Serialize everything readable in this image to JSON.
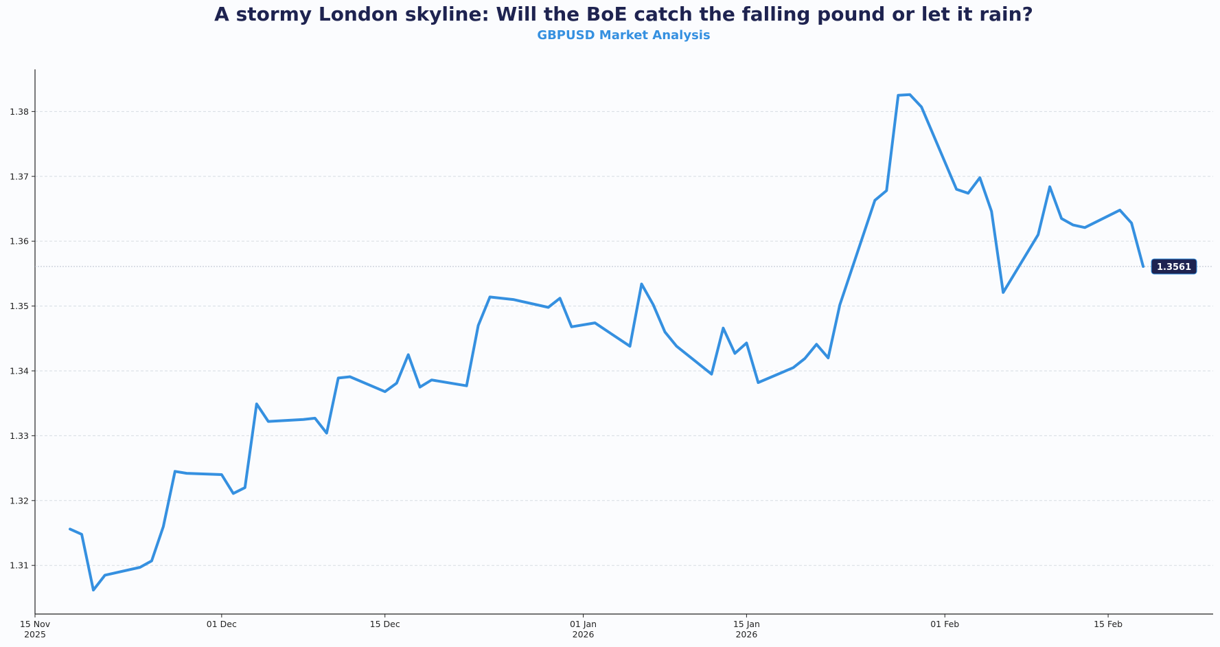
{
  "chart_data": {
    "type": "line",
    "title": "A stormy London skyline: Will the BoE catch the falling pound or let it rain?",
    "subtitle": "GBPUSD Market Analysis",
    "xlabel": "",
    "ylabel": "",
    "xlim": [
      "2025-11-15",
      "2026-02-24"
    ],
    "ylim": [
      1.3025,
      1.3865
    ],
    "grid": "horizontal-dashed",
    "x_ticks": [
      {
        "date": "2025-11-15",
        "label": "15 Nov",
        "year": "2025"
      },
      {
        "date": "2025-12-01",
        "label": "01 Dec",
        "year": ""
      },
      {
        "date": "2025-12-15",
        "label": "15 Dec",
        "year": ""
      },
      {
        "date": "2026-01-01",
        "label": "01 Jan",
        "year": "2026"
      },
      {
        "date": "2026-01-15",
        "label": "15 Jan",
        "year": "2026"
      },
      {
        "date": "2026-02-01",
        "label": "01 Feb",
        "year": ""
      },
      {
        "date": "2026-02-15",
        "label": "15 Feb",
        "year": ""
      }
    ],
    "y_ticks": [
      "1.31",
      "1.32",
      "1.33",
      "1.34",
      "1.35",
      "1.36",
      "1.37",
      "1.38"
    ],
    "last_value_label": "1.3561",
    "line_color": "#3590e0",
    "label_color": "#1e2350",
    "series": [
      {
        "x": [
          "2025-11-18",
          "2025-11-19",
          "2025-11-20",
          "2025-11-21",
          "2025-11-24",
          "2025-11-25",
          "2025-11-26",
          "2025-11-27",
          "2025-11-28",
          "2025-12-01",
          "2025-12-02",
          "2025-12-03",
          "2025-12-04",
          "2025-12-05",
          "2025-12-08",
          "2025-12-09",
          "2025-12-10",
          "2025-12-11",
          "2025-12-12",
          "2025-12-15",
          "2025-12-16",
          "2025-12-17",
          "2025-12-18",
          "2025-12-19",
          "2025-12-22",
          "2025-12-23",
          "2025-12-24",
          "2025-12-26",
          "2025-12-29",
          "2025-12-30",
          "2025-12-31",
          "2026-01-02",
          "2026-01-05",
          "2026-01-06",
          "2026-01-07",
          "2026-01-08",
          "2026-01-09",
          "2026-01-12",
          "2026-01-13",
          "2026-01-14",
          "2026-01-15",
          "2026-01-16",
          "2026-01-19",
          "2026-01-20",
          "2026-01-21",
          "2026-01-22",
          "2026-01-23",
          "2026-01-26",
          "2026-01-27",
          "2026-01-28",
          "2026-01-29",
          "2026-01-30",
          "2026-02-02",
          "2026-02-03",
          "2026-02-04",
          "2026-02-05",
          "2026-02-06",
          "2026-02-09",
          "2026-02-10",
          "2026-02-11",
          "2026-02-12",
          "2026-02-13",
          "2026-02-16",
          "2026-02-17",
          "2026-02-18"
        ],
        "values": [
          1.3156,
          1.3148,
          1.3062,
          1.3085,
          1.3097,
          1.3107,
          1.316,
          1.3245,
          1.3242,
          1.324,
          1.3211,
          1.322,
          1.3349,
          1.3322,
          1.3325,
          1.3327,
          1.3304,
          1.3389,
          1.3391,
          1.3368,
          1.3381,
          1.3425,
          1.3375,
          1.3386,
          1.3377,
          1.347,
          1.3514,
          1.351,
          1.3498,
          1.3512,
          1.3468,
          1.3474,
          1.3438,
          1.3534,
          1.3502,
          1.346,
          1.3438,
          1.3395,
          1.3466,
          1.3427,
          1.3443,
          1.3382,
          1.3405,
          1.3419,
          1.3441,
          1.342,
          1.3502,
          1.3663,
          1.3678,
          1.3825,
          1.3826,
          1.3807,
          1.368,
          1.3674,
          1.3698,
          1.3646,
          1.3521,
          1.361,
          1.3684,
          1.3635,
          1.3625,
          1.3621,
          1.3648,
          1.3628,
          1.3561
        ]
      }
    ]
  }
}
